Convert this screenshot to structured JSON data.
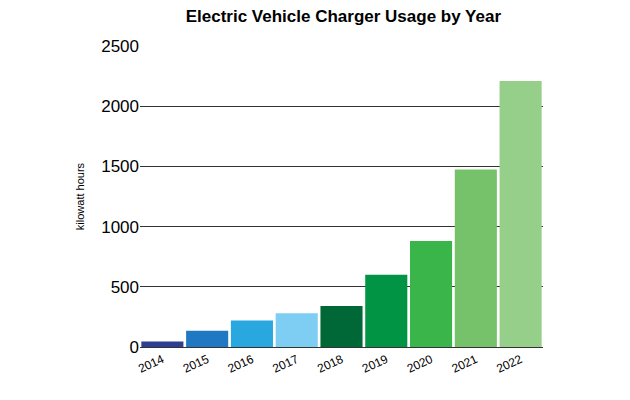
{
  "chart_data": {
    "type": "bar",
    "title": "Electric Vehicle Charger Usage by Year",
    "y_label": "kilowatt hours",
    "categories": [
      "2014",
      "2015",
      "2016",
      "2017",
      "2018",
      "2019",
      "2020",
      "2021",
      "2022"
    ],
    "values": [
      45,
      135,
      220,
      280,
      340,
      600,
      880,
      1475,
      2210
    ],
    "colors": [
      "#2e3f8f",
      "#1f78c1",
      "#29a8e0",
      "#7ecef4",
      "#006837",
      "#009444",
      "#39b54a",
      "#76c26a",
      "#96cf8a"
    ],
    "ylim": [
      0,
      2500
    ],
    "yticks": [
      0,
      500,
      1000,
      1500,
      2000,
      2500
    ],
    "grid": true
  }
}
